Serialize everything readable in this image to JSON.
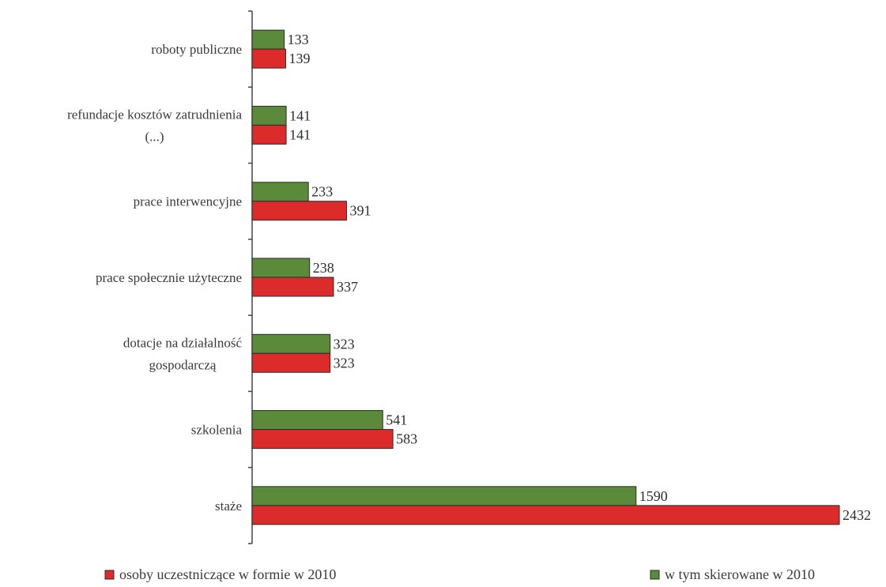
{
  "chart_data": {
    "type": "bar",
    "orientation": "horizontal",
    "categories": [
      [
        "roboty publiczne"
      ],
      [
        "refundacje kosztów zatrudnienia",
        "(...)"
      ],
      [
        "prace interwencyjne"
      ],
      [
        "prace społecznie użyteczne"
      ],
      [
        "dotacje na działalność",
        "gospodarczą"
      ],
      [
        "szkolenia"
      ],
      [
        "staże"
      ]
    ],
    "series": [
      {
        "name": "w tym skierowane w 2010",
        "color": "#5a8a3a",
        "values": [
          133,
          141,
          233,
          238,
          323,
          541,
          1590
        ]
      },
      {
        "name": "osoby uczestniczące w formie w 2010",
        "color": "#dd2a2a",
        "values": [
          139,
          141,
          391,
          337,
          323,
          583,
          2432
        ]
      }
    ],
    "legend_order": [
      1,
      0
    ],
    "legend_position": "bottom",
    "grid": false,
    "x_axis_visible": false,
    "title": "",
    "xlabel": "",
    "ylabel": ""
  }
}
